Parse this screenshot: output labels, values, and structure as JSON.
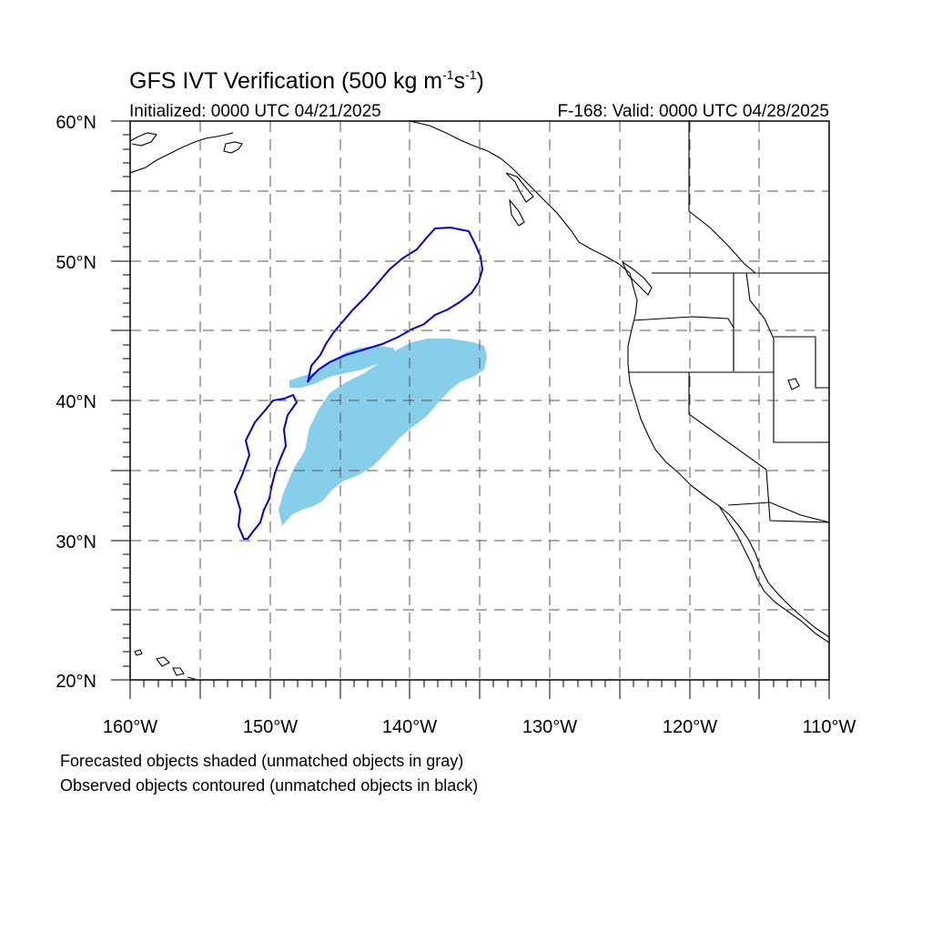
{
  "title": {
    "main": "GFS IVT Verification (500 kg m",
    "sup1": "-1",
    "mid": "s",
    "sup2": "-1",
    "end": ")"
  },
  "initialized": "Initialized: 0000 UTC 04/21/2025",
  "valid": "F-168: Valid: 0000 UTC 04/28/2025",
  "map": {
    "lon_range": [
      -160,
      -110
    ],
    "lat_range": [
      20,
      60
    ],
    "grid": "dashed every 5 degrees",
    "lat_labels": [
      "20°N",
      "30°N",
      "40°N",
      "50°N",
      "60°N"
    ],
    "lon_labels": [
      "160°W",
      "150°W",
      "140°W",
      "130°W",
      "120°W",
      "110°W"
    ],
    "forecast_color": "#87CEEB",
    "observed_color": "#0000CC"
  },
  "legend": {
    "forecast": "Forecasted objects shaded (unmatched objects in gray)",
    "observed": "Observed objects contoured (unmatched objects in black)"
  }
}
